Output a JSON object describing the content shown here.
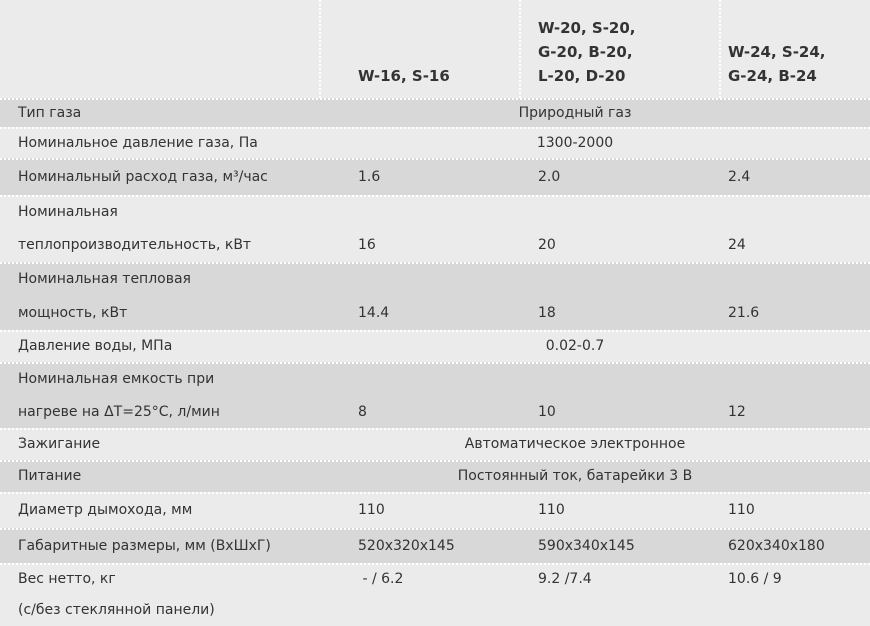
{
  "table": {
    "header": [
      [
        "W-16, S-16"
      ],
      [
        "W-20, S-20,",
        "G-20, B-20,",
        "L-20, D-20"
      ],
      [
        "W-24, S-24,",
        "G-24, B-24"
      ]
    ],
    "rows": [
      {
        "label": [
          "Тип газа"
        ],
        "values": [
          "Природный газ"
        ]
      },
      {
        "label": [
          "Номинальное давление газа, Па"
        ],
        "values": [
          "1300-2000"
        ]
      },
      {
        "label": [
          "Номинальный расход газа, м³/час"
        ],
        "values": [
          "1.6",
          "2.0",
          "2.4"
        ]
      },
      {
        "label": [
          "Номинальная",
          "теплопроизводительность, кВт"
        ],
        "values": [
          "16",
          "20",
          "24"
        ]
      },
      {
        "label": [
          "Номинальная тепловая",
          "мощность, кВт"
        ],
        "values": [
          "14.4",
          "18",
          "21.6"
        ]
      },
      {
        "label": [
          "Давление воды, МПа"
        ],
        "values": [
          "0.02-0.7"
        ]
      },
      {
        "label": [
          "Номинальная емкость при",
          "нагреве на ΔT=25°C, л/мин"
        ],
        "values": [
          "8",
          "10",
          "12"
        ]
      },
      {
        "label": [
          "Зажигание"
        ],
        "values": [
          "Автоматическое электронное"
        ]
      },
      {
        "label": [
          "Питание"
        ],
        "values": [
          "Постоянный ток, батарейки 3 В"
        ]
      },
      {
        "label": [
          "Диаметр дымохода, мм"
        ],
        "values": [
          "110",
          "110",
          "110"
        ]
      },
      {
        "label": [
          "Габаритные размеры, мм (ВхШхГ)"
        ],
        "values": [
          "520x320x145",
          "590x340x145",
          "620x340x180"
        ]
      },
      {
        "label": [
          "Вес нетто, кг",
          "(с/без стеклянной панели)"
        ],
        "values": [
          " - / 6.2",
          "9.2 /7.4",
          "10.6 / 9"
        ]
      }
    ]
  }
}
